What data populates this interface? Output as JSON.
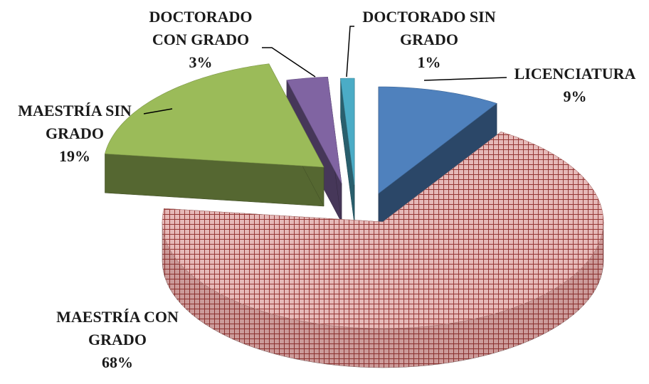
{
  "chart_data": {
    "type": "pie3d",
    "categories": [
      "LICENCIATURA",
      "MAESTRÍA CON GRADO",
      "MAESTRÍA SIN GRADO",
      "DOCTORADO CON GRADO",
      "DOCTORADO SIN GRADO"
    ],
    "values": [
      9,
      68,
      19,
      3,
      1
    ],
    "value_labels": [
      "9%",
      "68%",
      "19%",
      "3%",
      "1%"
    ],
    "colors": [
      "#4f81bd",
      "#e6b9b8",
      "#9bbb59",
      "#8064a2",
      "#4bacc6"
    ],
    "pattern": [
      null,
      "grid",
      null,
      null,
      null
    ]
  }
}
